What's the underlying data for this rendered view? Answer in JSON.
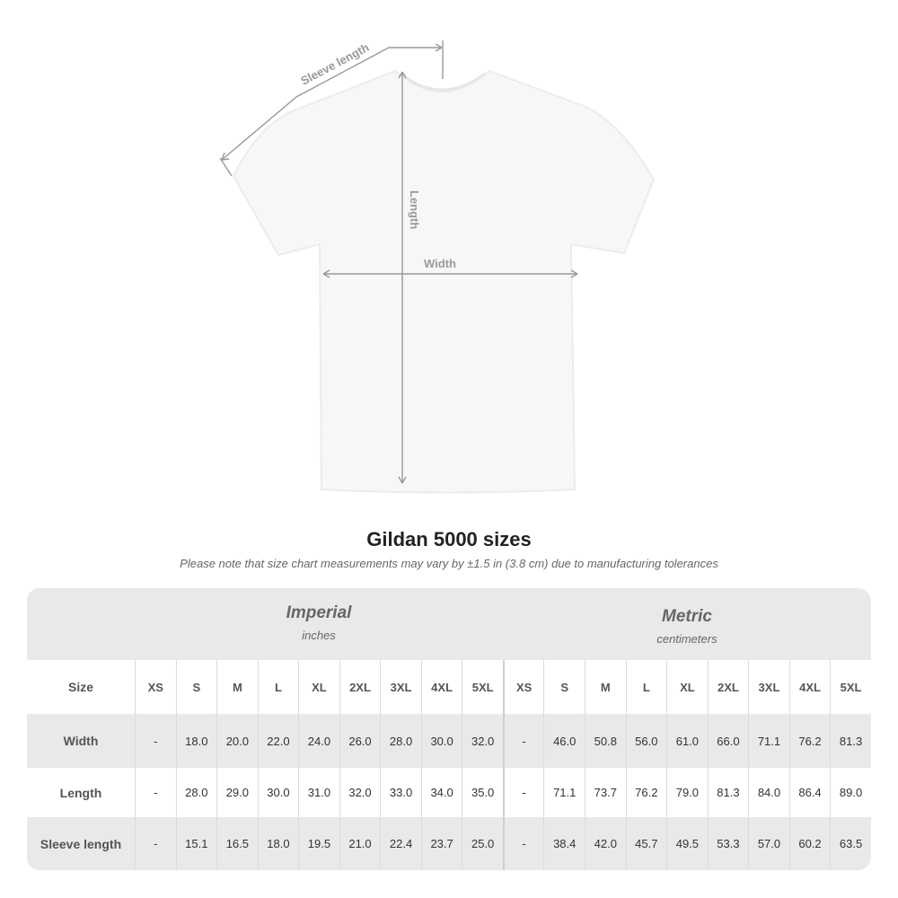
{
  "diagram": {
    "sleeve_label": "Sleeve length",
    "length_label": "Length",
    "width_label": "Width",
    "line_color": "#999999"
  },
  "title": "Gildan 5000 sizes",
  "note": "Please note that size chart measurements may vary by ±1.5 in (3.8 cm) due to manufacturing tolerances",
  "table": {
    "imperial": {
      "title": "Imperial",
      "unit": "inches"
    },
    "metric": {
      "title": "Metric",
      "unit": "centimeters"
    },
    "size_label": "Size",
    "sizes": [
      "XS",
      "S",
      "M",
      "L",
      "XL",
      "2XL",
      "3XL",
      "4XL",
      "5XL"
    ],
    "rows": [
      {
        "label": "Width",
        "imperial": [
          "-",
          "18.0",
          "20.0",
          "22.0",
          "24.0",
          "26.0",
          "28.0",
          "30.0",
          "32.0"
        ],
        "metric": [
          "-",
          "46.0",
          "50.8",
          "56.0",
          "61.0",
          "66.0",
          "71.1",
          "76.2",
          "81.3"
        ]
      },
      {
        "label": "Length",
        "imperial": [
          "-",
          "28.0",
          "29.0",
          "30.0",
          "31.0",
          "32.0",
          "33.0",
          "34.0",
          "35.0"
        ],
        "metric": [
          "-",
          "71.1",
          "73.7",
          "76.2",
          "79.0",
          "81.3",
          "84.0",
          "86.4",
          "89.0"
        ]
      },
      {
        "label": "Sleeve length",
        "imperial": [
          "-",
          "15.1",
          "16.5",
          "18.0",
          "19.5",
          "21.0",
          "22.4",
          "23.7",
          "25.0"
        ],
        "metric": [
          "-",
          "38.4",
          "42.0",
          "45.7",
          "49.5",
          "53.3",
          "57.0",
          "60.2",
          "63.5"
        ]
      }
    ]
  }
}
